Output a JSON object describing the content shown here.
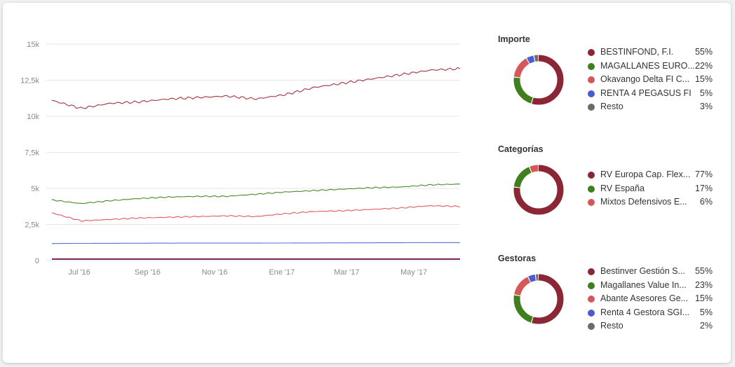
{
  "chart_data": [
    {
      "type": "line",
      "x_ticks": [
        "Jul '16",
        "Sep '16",
        "Nov '16",
        "Ene '17",
        "Mar '17",
        "May '17"
      ],
      "x_range": [
        "2016-06-01",
        "2017-06-12"
      ],
      "y_ticks": [
        "0",
        "2,5k",
        "5k",
        "7,5k",
        "10k",
        "12,5k",
        "15k"
      ],
      "ylim": [
        0,
        15000
      ],
      "grid": true,
      "series": [
        {
          "color": "#a3353e",
          "values": [
            11100,
            10550,
            10900,
            11000,
            11200,
            11300,
            11400,
            11200,
            11500,
            12000,
            12300,
            12600,
            12900,
            13200,
            13300
          ]
        },
        {
          "color": "#4a8a2a",
          "values": [
            4200,
            3950,
            4150,
            4300,
            4400,
            4450,
            4450,
            4600,
            4750,
            4850,
            4950,
            5050,
            5100,
            5250,
            5300
          ]
        },
        {
          "color": "#e05c60",
          "values": [
            3300,
            2750,
            2850,
            2950,
            3000,
            3050,
            3100,
            3050,
            3250,
            3400,
            3450,
            3550,
            3650,
            3800,
            3750
          ]
        },
        {
          "color": "#5b6ee1",
          "values": [
            1180,
            1190,
            1195,
            1200,
            1205,
            1210,
            1210,
            1210,
            1215,
            1220,
            1225,
            1230,
            1235,
            1240,
            1245
          ]
        },
        {
          "color": "#7a1f4f",
          "values": [
            100,
            100,
            100,
            100,
            100,
            100,
            100,
            100,
            100,
            100,
            100,
            100,
            100,
            100,
            100
          ]
        }
      ]
    },
    {
      "type": "pie",
      "title": "Importe",
      "labels": [
        "BESTINFOND, F.I.",
        "MAGALLANES EURO...",
        "Okavango Delta FI C...",
        "RENTA 4 PEGASUS FI",
        "Resto"
      ],
      "pct_labels": [
        "55%",
        "22%",
        "15%",
        "5%",
        "3%"
      ],
      "values": [
        55,
        22,
        15,
        5,
        3
      ],
      "colors": [
        "#8b2635",
        "#3f7f1e",
        "#d65757",
        "#4b5ccf",
        "#6b6b6b"
      ]
    },
    {
      "type": "pie",
      "title": "Categorías",
      "labels": [
        "RV Europa Cap. Flex...",
        "RV España",
        "Mixtos Defensivos E..."
      ],
      "pct_labels": [
        "77%",
        "17%",
        "6%"
      ],
      "values": [
        77,
        17,
        6
      ],
      "colors": [
        "#8b2635",
        "#3f7f1e",
        "#d65757"
      ]
    },
    {
      "type": "pie",
      "title": "Gestoras",
      "labels": [
        "Bestinver Gestión S...",
        "Magallanes Value In...",
        "Abante Asesores Ge...",
        "Renta 4 Gestora SGI...",
        "Resto"
      ],
      "pct_labels": [
        "55%",
        "23%",
        "15%",
        "5%",
        "2%"
      ],
      "values": [
        55,
        23,
        15,
        5,
        2
      ],
      "colors": [
        "#8b2635",
        "#3f7f1e",
        "#d65757",
        "#4b5ccf",
        "#6b6b6b"
      ]
    }
  ]
}
